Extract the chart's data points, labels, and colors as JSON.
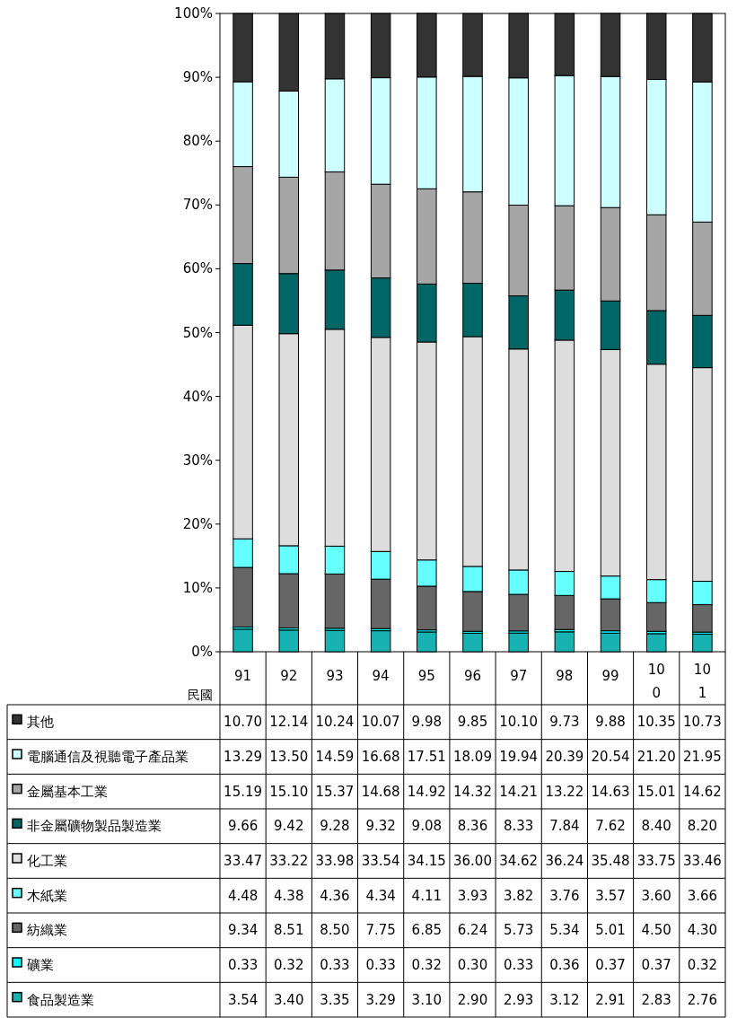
{
  "chart_data": {
    "type": "bar",
    "stacked": true,
    "xlabel": "民國",
    "categories": [
      "91",
      "92",
      "93",
      "94",
      "95",
      "96",
      "97",
      "98",
      "99",
      "100",
      "101"
    ],
    "ylim": [
      0,
      100
    ],
    "yticks": [
      {
        "value": 0,
        "label": "0%"
      },
      {
        "value": 10,
        "label": "10%"
      },
      {
        "value": 20,
        "label": "20%"
      },
      {
        "value": 30,
        "label": "30%"
      },
      {
        "value": 40,
        "label": "40%"
      },
      {
        "value": 50,
        "label": "50%"
      },
      {
        "value": 60,
        "label": "60%"
      },
      {
        "value": 70,
        "label": "70%"
      },
      {
        "value": 80,
        "label": "80%"
      },
      {
        "value": 90,
        "label": "90%"
      },
      {
        "value": 100,
        "label": "100%"
      }
    ],
    "legend": "bottom",
    "grid": false,
    "series": [
      {
        "name": "食品製造業",
        "color": "#19b2b2",
        "values": [
          3.54,
          3.4,
          3.35,
          3.29,
          3.1,
          2.9,
          2.93,
          3.12,
          2.91,
          2.83,
          2.76
        ],
        "value_labels": [
          "3.54",
          "3.40",
          "3.35",
          "3.29",
          "3.10",
          "2.90",
          "2.93",
          "3.12",
          "2.91",
          "2.83",
          "2.76"
        ]
      },
      {
        "name": "礦業",
        "color": "#00ffff",
        "values": [
          0.33,
          0.32,
          0.33,
          0.33,
          0.32,
          0.3,
          0.33,
          0.36,
          0.37,
          0.37,
          0.32
        ],
        "value_labels": [
          "0.33",
          "0.32",
          "0.33",
          "0.33",
          "0.32",
          "0.30",
          "0.33",
          "0.36",
          "0.37",
          "0.37",
          "0.32"
        ]
      },
      {
        "name": "紡織業",
        "color": "#666666",
        "values": [
          9.34,
          8.51,
          8.5,
          7.75,
          6.85,
          6.24,
          5.73,
          5.34,
          5.01,
          4.5,
          4.3
        ],
        "value_labels": [
          "9.34",
          "8.51",
          "8.50",
          "7.75",
          "6.85",
          "6.24",
          "5.73",
          "5.34",
          "5.01",
          "4.50",
          "4.30"
        ]
      },
      {
        "name": "木紙業",
        "color": "#66ffff",
        "values": [
          4.48,
          4.38,
          4.36,
          4.34,
          4.11,
          3.93,
          3.82,
          3.76,
          3.57,
          3.6,
          3.66
        ],
        "value_labels": [
          "4.48",
          "4.38",
          "4.36",
          "4.34",
          "4.11",
          "3.93",
          "3.82",
          "3.76",
          "3.57",
          "3.60",
          "3.66"
        ]
      },
      {
        "name": "化工業",
        "color": "#dddddd",
        "values": [
          33.47,
          33.22,
          33.98,
          33.54,
          34.15,
          36.0,
          34.62,
          36.24,
          35.48,
          33.75,
          33.46
        ],
        "value_labels": [
          "33.47",
          "33.22",
          "33.98",
          "33.54",
          "34.15",
          "36.00",
          "34.62",
          "36.24",
          "35.48",
          "33.75",
          "33.46"
        ]
      },
      {
        "name": "非金屬礦物製品製造業",
        "color": "#006666",
        "values": [
          9.66,
          9.42,
          9.28,
          9.32,
          9.08,
          8.36,
          8.33,
          7.84,
          7.62,
          8.4,
          8.2
        ],
        "value_labels": [
          "9.66",
          "9.42",
          "9.28",
          "9.32",
          "9.08",
          "8.36",
          "8.33",
          "7.84",
          "7.62",
          "8.40",
          "8.20"
        ]
      },
      {
        "name": "金屬基本工業",
        "color": "#a6a6a6",
        "values": [
          15.19,
          15.1,
          15.37,
          14.68,
          14.92,
          14.32,
          14.21,
          13.22,
          14.63,
          15.01,
          14.62
        ],
        "value_labels": [
          "15.19",
          "15.10",
          "15.37",
          "14.68",
          "14.92",
          "14.32",
          "14.21",
          "13.22",
          "14.63",
          "15.01",
          "14.62"
        ]
      },
      {
        "name": "電腦通信及視聽電子產品業",
        "color": "#ccffff",
        "values": [
          13.29,
          13.5,
          14.59,
          16.68,
          17.51,
          18.09,
          19.94,
          20.39,
          20.54,
          21.2,
          21.95
        ],
        "value_labels": [
          "13.29",
          "13.50",
          "14.59",
          "16.68",
          "17.51",
          "18.09",
          "19.94",
          "20.39",
          "20.54",
          "21.20",
          "21.95"
        ]
      },
      {
        "name": "其他",
        "color": "#333333",
        "values": [
          10.7,
          12.14,
          10.24,
          10.07,
          9.98,
          9.85,
          10.1,
          9.73,
          9.88,
          10.35,
          10.73
        ],
        "value_labels": [
          "10.70",
          "12.14",
          "10.24",
          "10.07",
          "9.98",
          "9.85",
          "10.10",
          "9.73",
          "9.88",
          "10.35",
          "10.73"
        ]
      }
    ]
  }
}
